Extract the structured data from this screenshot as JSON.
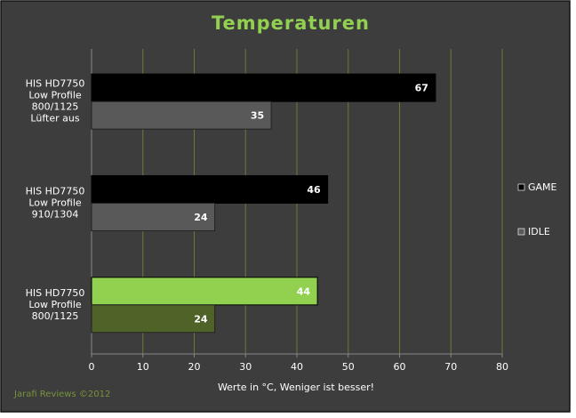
{
  "chart_data": {
    "type": "hbar",
    "title": "Temperaturen",
    "categories": [
      "HIS HD7750\nLow Profile\n800/1125\nLüfter aus",
      "HIS HD7750\nLow Profile\n910/1304",
      "HIS HD7750\nLow Profile\n800/1125"
    ],
    "series": [
      {
        "name": "GAME",
        "color": "#000000",
        "point_colors": [
          "#000000",
          "#000000",
          "#92d050"
        ],
        "values": [
          67,
          46,
          44
        ]
      },
      {
        "name": "IDLE",
        "color": "#595959",
        "point_colors": [
          "#595959",
          "#595959",
          "#4f6228"
        ],
        "values": [
          35,
          24,
          24
        ]
      }
    ],
    "xlabel": "Werte in °C, Weniger ist besser!",
    "xlim": [
      0,
      80
    ],
    "xticks": [
      0,
      10,
      20,
      30,
      40,
      50,
      60,
      70,
      80
    ],
    "grid": true,
    "legend": "right",
    "footer": "Jarafi Reviews  ©2012"
  }
}
